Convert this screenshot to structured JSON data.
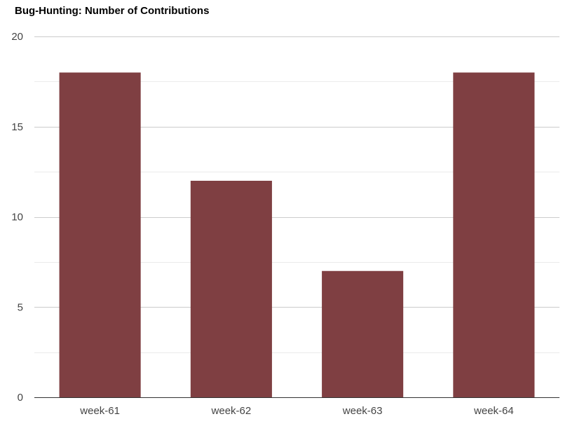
{
  "chart_data": {
    "type": "bar",
    "title": "Bug-Hunting: Number of Contributions",
    "categories": [
      "week-61",
      "week-62",
      "week-63",
      "week-64"
    ],
    "values": [
      18,
      12,
      7,
      18
    ],
    "xlabel": "",
    "ylabel": "",
    "ylim": [
      0,
      20
    ],
    "yticks": [
      0,
      5,
      10,
      15,
      20
    ],
    "grid": true,
    "legend": "none",
    "colors": {
      "bar": "#7f3f42",
      "major_grid": "#cccccc",
      "minor_grid": "#ebebeb",
      "axis": "#333333",
      "tick_text": "#444444"
    }
  }
}
